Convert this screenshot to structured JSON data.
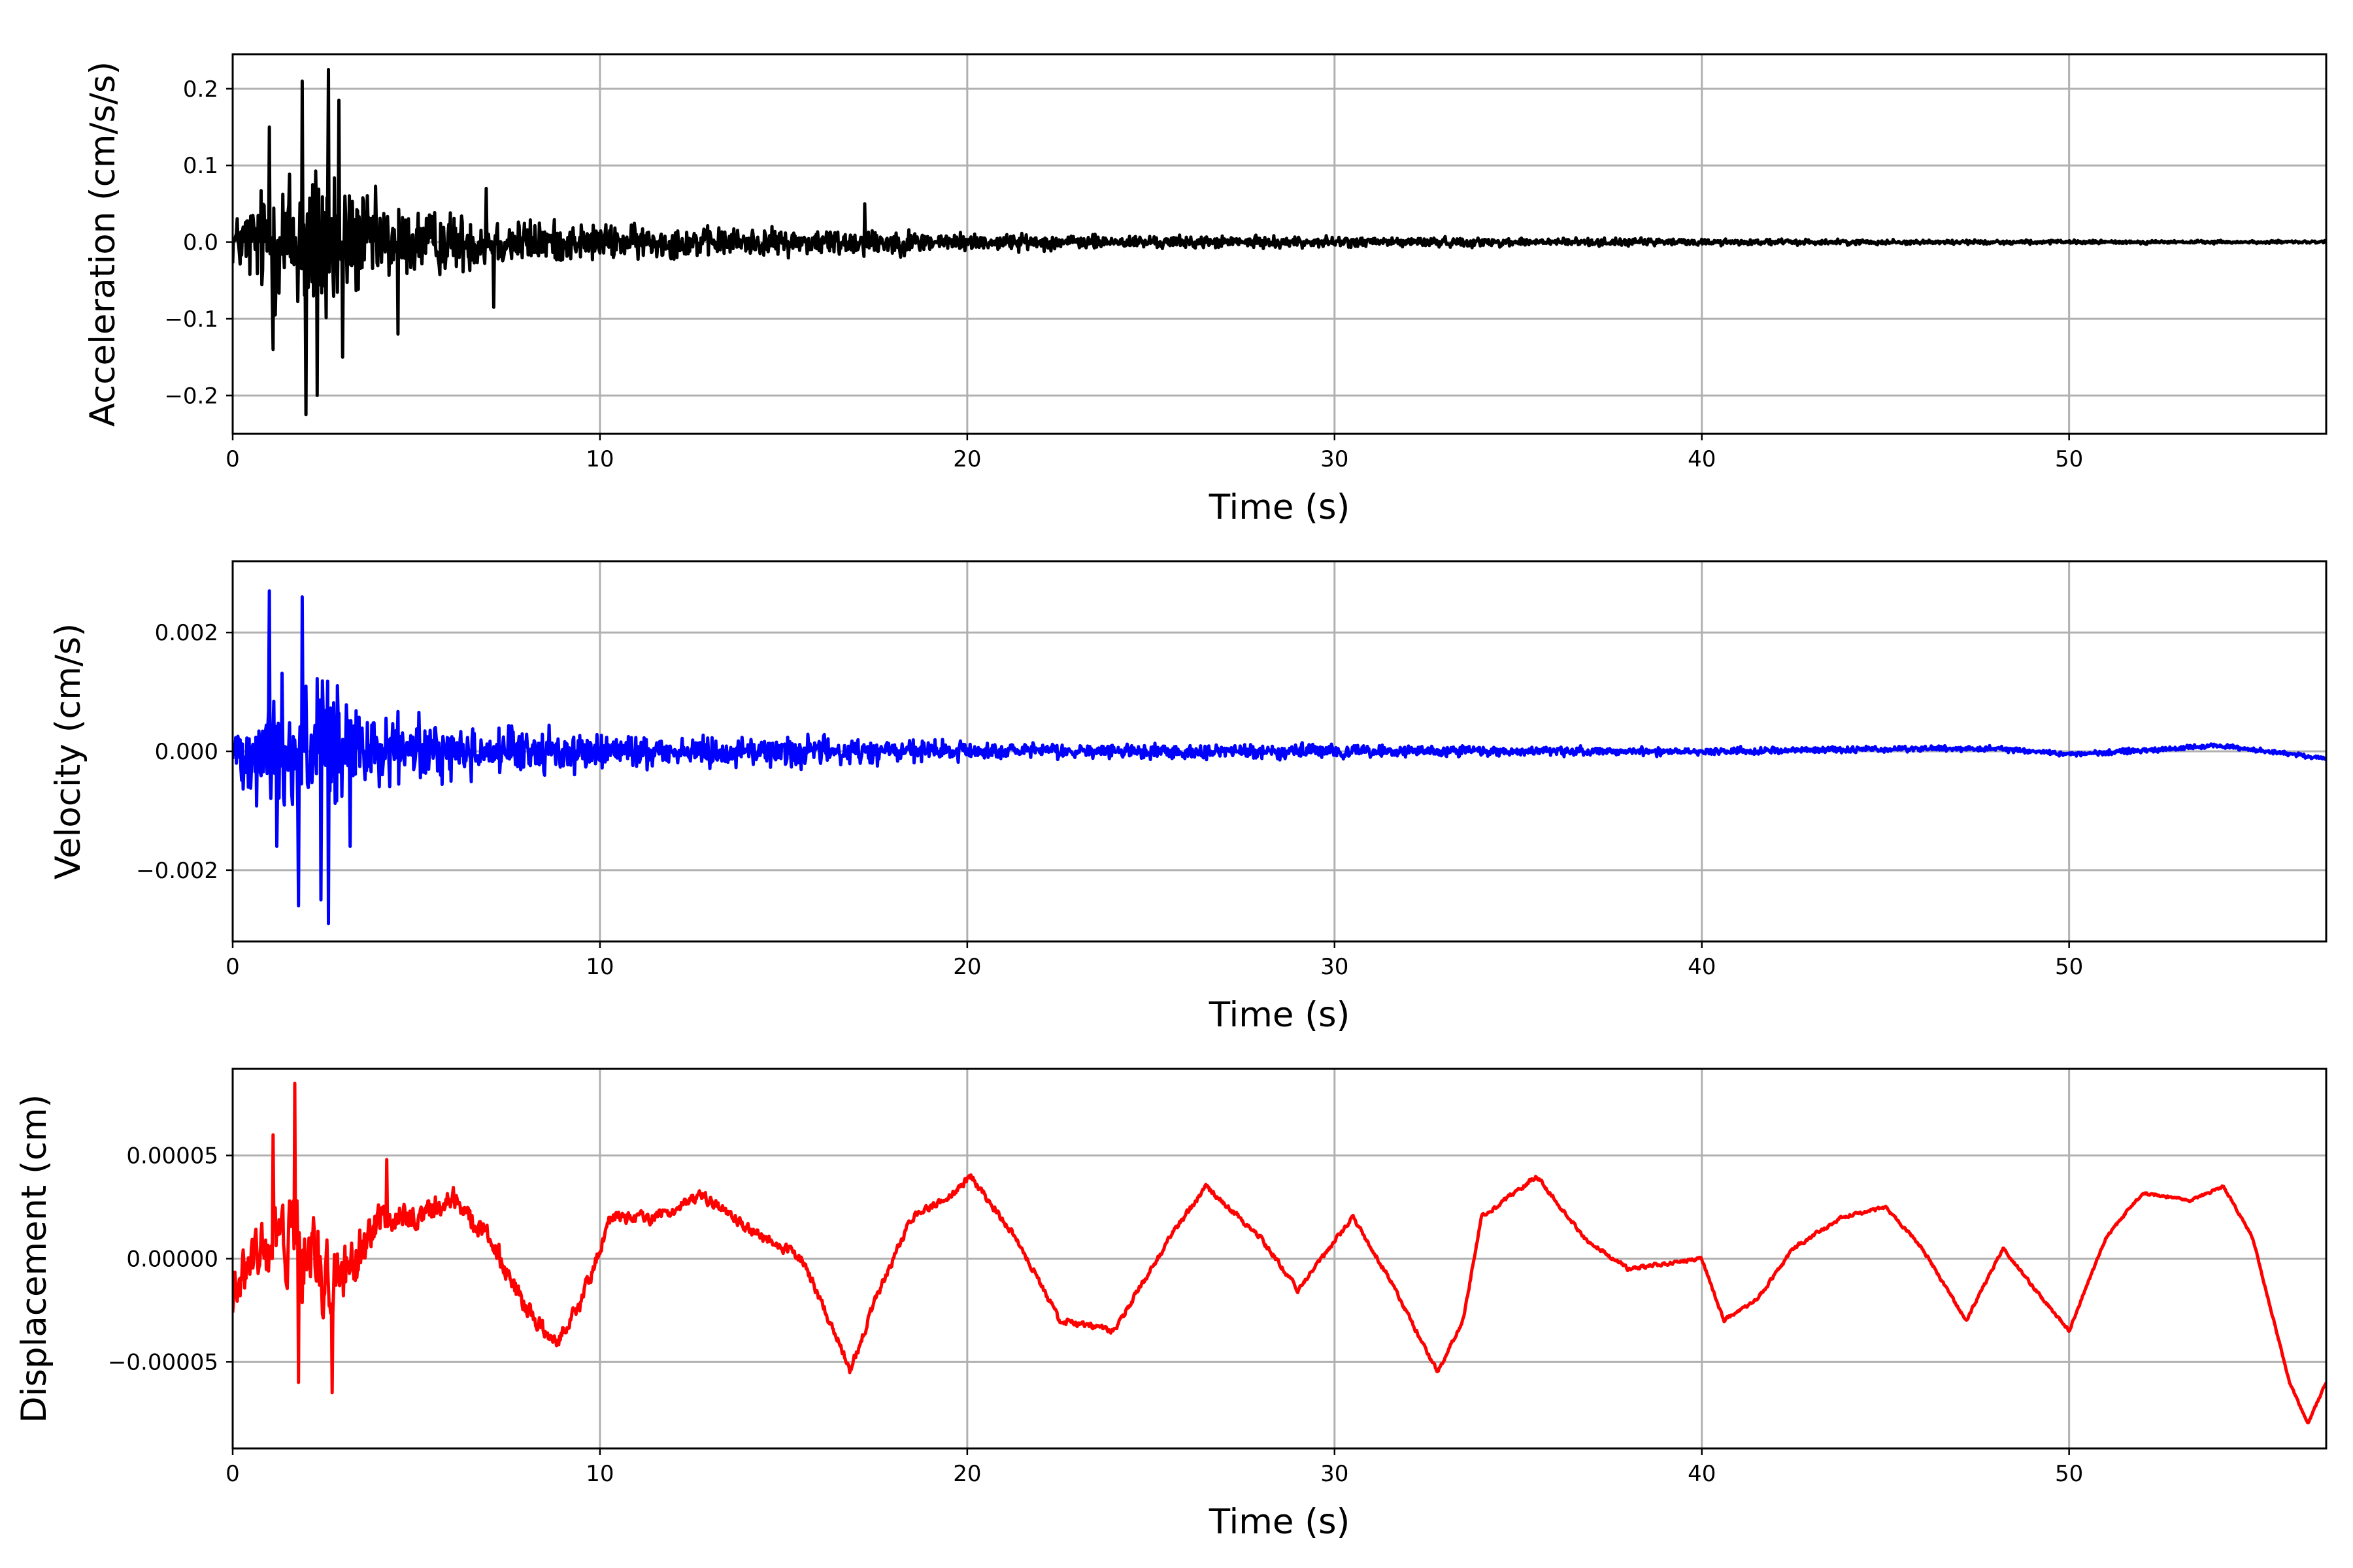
{
  "chart_data": [
    {
      "type": "line",
      "xlabel": "Time (s)",
      "ylabel": "Acceleration (cm/s/s)",
      "xlim": [
        0,
        57
      ],
      "ylim": [
        -0.25,
        0.245
      ],
      "xticks": [
        0,
        10,
        20,
        30,
        40,
        50
      ],
      "xtick_labels": [
        "0",
        "10",
        "20",
        "30",
        "40",
        "50"
      ],
      "yticks": [
        0.2,
        0.1,
        0.0,
        -0.1,
        -0.2
      ],
      "ytick_labels": [
        "0.2",
        "0.1",
        "0.0",
        "−0.1",
        "−0.2"
      ],
      "grid": true,
      "color": "#000000",
      "envelope": [
        [
          0,
          0.05
        ],
        [
          1,
          0.13
        ],
        [
          2,
          0.19
        ],
        [
          2.6,
          0.2
        ],
        [
          3,
          0.13
        ],
        [
          4,
          0.09
        ],
        [
          5,
          0.07
        ],
        [
          7,
          0.055
        ],
        [
          9,
          0.04
        ],
        [
          12,
          0.032
        ],
        [
          15,
          0.027
        ],
        [
          17,
          0.03
        ],
        [
          20,
          0.018
        ],
        [
          25,
          0.013
        ],
        [
          30,
          0.011
        ],
        [
          35,
          0.009
        ],
        [
          40,
          0.007
        ],
        [
          45,
          0.005
        ],
        [
          50,
          0.004
        ],
        [
          57,
          0.003
        ]
      ],
      "peaks": [
        [
          1.0,
          0.15
        ],
        [
          1.9,
          0.21
        ],
        [
          2.6,
          0.225
        ],
        [
          2.9,
          0.185
        ],
        [
          2.0,
          -0.225
        ],
        [
          2.3,
          -0.2
        ],
        [
          1.1,
          -0.14
        ],
        [
          3.0,
          -0.15
        ],
        [
          4.5,
          -0.12
        ],
        [
          6.9,
          0.07
        ],
        [
          7.1,
          -0.085
        ],
        [
          17.2,
          0.05
        ]
      ],
      "series": [
        {
          "values": []
        }
      ]
    },
    {
      "type": "line",
      "xlabel": "Time (s)",
      "ylabel": "Velocity (cm/s)",
      "xlim": [
        0,
        57
      ],
      "ylim": [
        -0.0032,
        0.0032
      ],
      "xticks": [
        0,
        10,
        20,
        30,
        40,
        50
      ],
      "xtick_labels": [
        "0",
        "10",
        "20",
        "30",
        "40",
        "50"
      ],
      "yticks": [
        0.002,
        0.0,
        -0.002
      ],
      "ytick_labels": [
        "0.002",
        "0.000",
        "−0.002"
      ],
      "grid": true,
      "color": "#0000ff",
      "envelope": [
        [
          0,
          0.0006
        ],
        [
          1,
          0.0016
        ],
        [
          2,
          0.0022
        ],
        [
          2.7,
          0.0022
        ],
        [
          3.2,
          0.0013
        ],
        [
          4,
          0.0009
        ],
        [
          6,
          0.0007
        ],
        [
          9,
          0.0005
        ],
        [
          12,
          0.0004
        ],
        [
          17,
          0.0004
        ],
        [
          19,
          0.0003
        ],
        [
          22,
          0.0002
        ],
        [
          30,
          0.00018
        ],
        [
          35,
          0.00012
        ],
        [
          45,
          8e-05
        ],
        [
          57,
          5e-05
        ]
      ],
      "baseline": [
        [
          0,
          0
        ],
        [
          40,
          0
        ],
        [
          44,
          3e-05
        ],
        [
          48,
          5e-05
        ],
        [
          50,
          -5e-05
        ],
        [
          53,
          5e-05
        ],
        [
          54,
          0.0001
        ],
        [
          55.5,
          0.0
        ],
        [
          57,
          -0.00012
        ]
      ],
      "peaks": [
        [
          1.0,
          0.0027
        ],
        [
          1.9,
          0.0026
        ],
        [
          2.6,
          -0.0029
        ],
        [
          1.8,
          -0.0026
        ],
        [
          2.4,
          -0.0025
        ],
        [
          1.2,
          -0.0016
        ],
        [
          3.2,
          -0.0016
        ]
      ],
      "series": [
        {
          "values": []
        }
      ]
    },
    {
      "type": "line",
      "xlabel": "Time (s)",
      "ylabel": "Displacement (cm)",
      "xlim": [
        0,
        57
      ],
      "ylim": [
        -9.2e-05,
        9.2e-05
      ],
      "xticks": [
        0,
        10,
        20,
        30,
        40,
        50
      ],
      "xtick_labels": [
        "0",
        "10",
        "20",
        "30",
        "40",
        "50"
      ],
      "yticks": [
        5e-05,
        0.0,
        -5e-05
      ],
      "ytick_labels": [
        "0.00005",
        "0.00000",
        "−0.00005"
      ],
      "grid": true,
      "color": "#ff0000",
      "baseline": [
        [
          0,
          -2e-05
        ],
        [
          0.6,
          0
        ],
        [
          1.5,
          1e-05
        ],
        [
          2.5,
          -1e-05
        ],
        [
          3.2,
          -1e-05
        ],
        [
          4,
          2e-05
        ],
        [
          5,
          2e-05
        ],
        [
          6,
          3e-05
        ],
        [
          7,
          1e-05
        ],
        [
          8,
          -2.5e-05
        ],
        [
          8.8,
          -4e-05
        ],
        [
          9.5,
          -2e-05
        ],
        [
          10.3,
          2e-05
        ],
        [
          11.5,
          2e-05
        ],
        [
          12.8,
          3e-05
        ],
        [
          14,
          1.5e-05
        ],
        [
          15.5,
          0
        ],
        [
          16.5,
          -4e-05
        ],
        [
          16.8,
          -5.5e-05
        ],
        [
          17.5,
          -2e-05
        ],
        [
          18.5,
          2e-05
        ],
        [
          19.5,
          3e-05
        ],
        [
          20.1,
          4e-05
        ],
        [
          21.5,
          5e-06
        ],
        [
          22.5,
          -3e-05
        ],
        [
          24,
          -3.5e-05
        ],
        [
          25.5,
          1e-05
        ],
        [
          26.5,
          3.5e-05
        ],
        [
          28,
          1e-05
        ],
        [
          29,
          -1.5e-05
        ],
        [
          30.5,
          2e-05
        ],
        [
          31.5,
          -1e-05
        ],
        [
          32.8,
          -5.5e-05
        ],
        [
          33.5,
          -3e-05
        ],
        [
          34,
          2e-05
        ],
        [
          35.5,
          4e-05
        ],
        [
          36.8,
          1e-05
        ],
        [
          38,
          -5e-06
        ],
        [
          40,
          0
        ],
        [
          40.6,
          -3e-05
        ],
        [
          41.5,
          -2e-05
        ],
        [
          42.5,
          5e-06
        ],
        [
          43.8,
          2e-05
        ],
        [
          45,
          2.5e-05
        ],
        [
          46,
          5e-06
        ],
        [
          47.2,
          -3e-05
        ],
        [
          48.2,
          5e-06
        ],
        [
          49.3,
          -2e-05
        ],
        [
          50,
          -3.5e-05
        ],
        [
          51,
          1e-05
        ],
        [
          52,
          3.2e-05
        ],
        [
          53.3,
          2.8e-05
        ],
        [
          54.2,
          3.5e-05
        ],
        [
          55,
          1e-05
        ],
        [
          56,
          -6e-05
        ],
        [
          56.5,
          -8e-05
        ],
        [
          57,
          -6e-05
        ]
      ],
      "noise": [
        [
          0,
          2e-05
        ],
        [
          1,
          3e-05
        ],
        [
          2,
          4e-05
        ],
        [
          3,
          3e-05
        ],
        [
          4,
          1.5e-05
        ],
        [
          6,
          1e-05
        ],
        [
          8,
          8e-06
        ],
        [
          10,
          6e-06
        ],
        [
          15,
          4e-06
        ],
        [
          20,
          3e-06
        ],
        [
          30,
          2e-06
        ],
        [
          40,
          1.5e-06
        ],
        [
          57,
          1e-06
        ]
      ],
      "peaks": [
        [
          1.7,
          8.5e-05
        ],
        [
          1.1,
          6e-05
        ],
        [
          2.7,
          -6.5e-05
        ],
        [
          1.8,
          -6e-05
        ],
        [
          4.2,
          4.8e-05
        ]
      ],
      "series": [
        {
          "values": []
        }
      ]
    }
  ]
}
